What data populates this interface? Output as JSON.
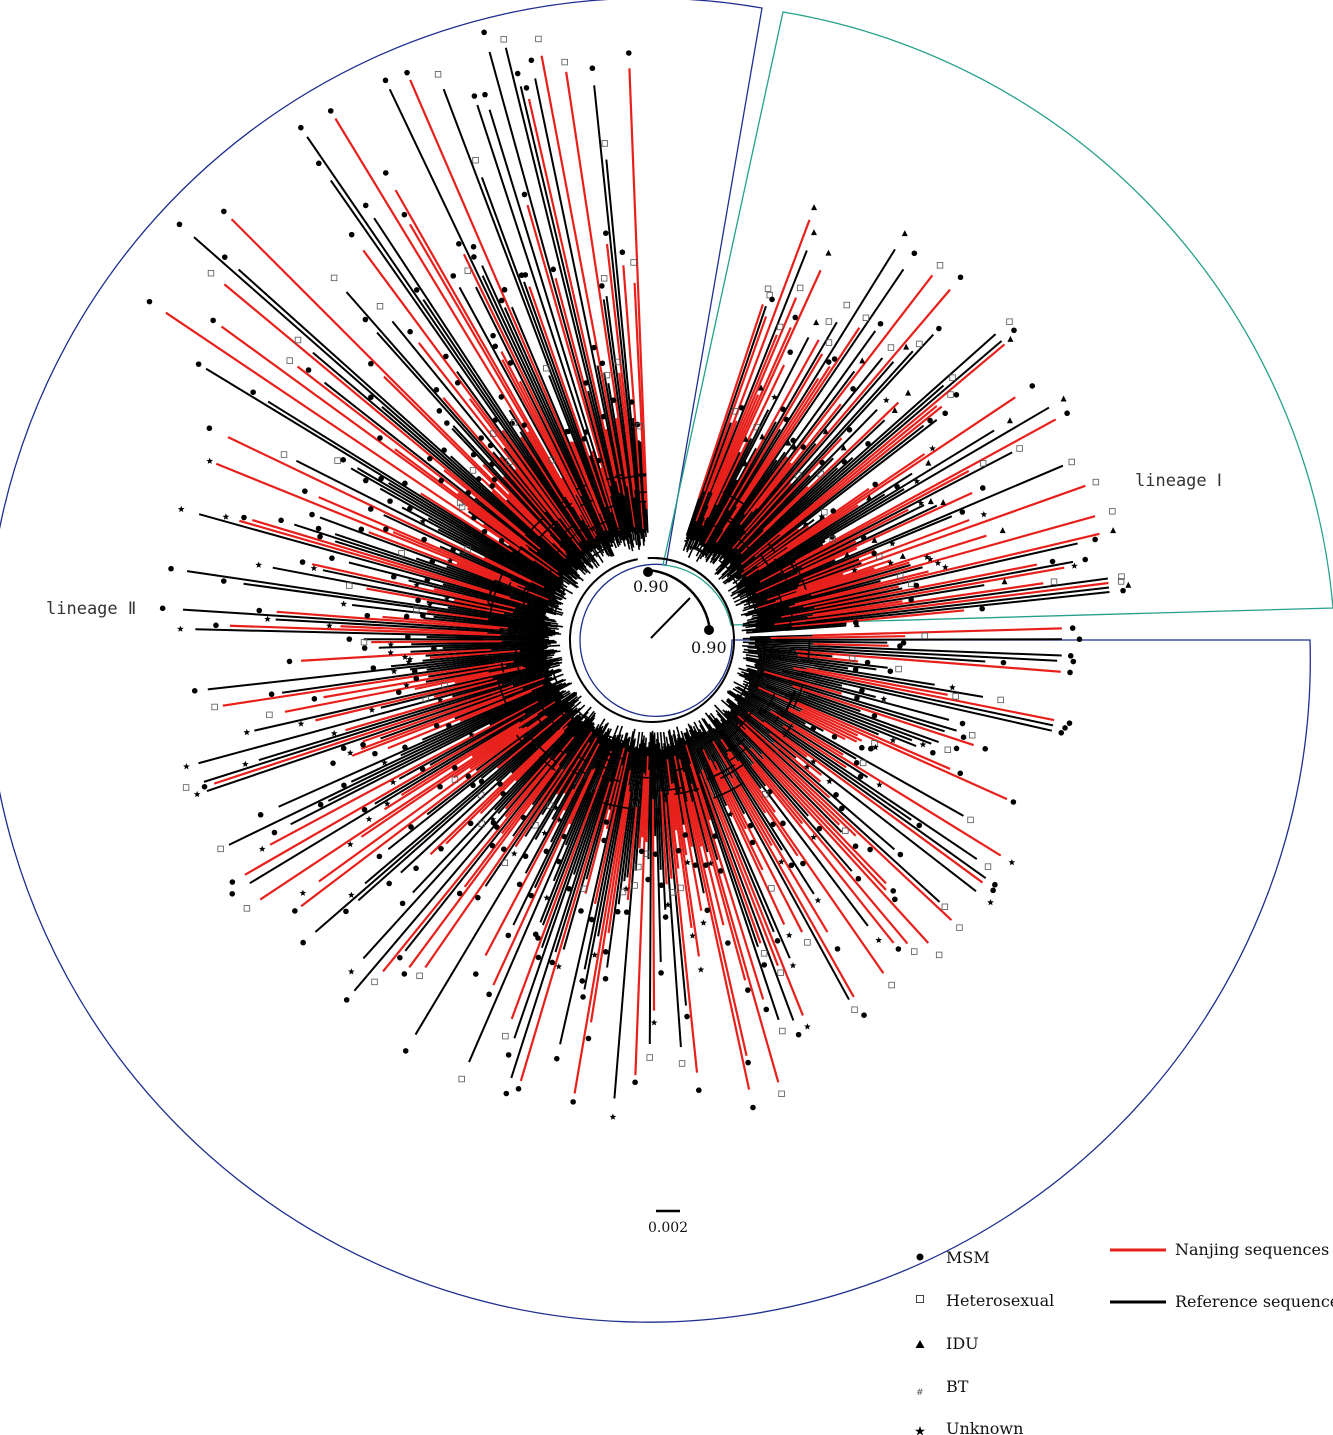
{
  "figure": {
    "lineage_1_label": "lineage Ⅰ",
    "lineage_2_label": "lineage Ⅱ",
    "node_support_1": "0.90",
    "node_support_2": "0.90",
    "scale_bar_label": "0.002",
    "lineage_1_color": "#26a08a",
    "lineage_2_color": "#1f2f8f",
    "nanjing_color": "#e8201c",
    "reference_color": "#000000"
  },
  "legend": {
    "risk_groups": [
      {
        "label": "MSM",
        "icon": "filled-circle-icon"
      },
      {
        "label": "Heterosexual",
        "icon": "open-square-icon"
      },
      {
        "label": "IDU",
        "icon": "filled-triangle-icon"
      },
      {
        "label": "BT",
        "icon": "hash-icon"
      },
      {
        "label": "Unknown",
        "icon": "star-icon"
      }
    ],
    "sequence_types": [
      {
        "label": "Nanjing sequences",
        "color": "#e8201c"
      },
      {
        "label": "Reference sequences",
        "color": "#000000"
      }
    ]
  }
}
